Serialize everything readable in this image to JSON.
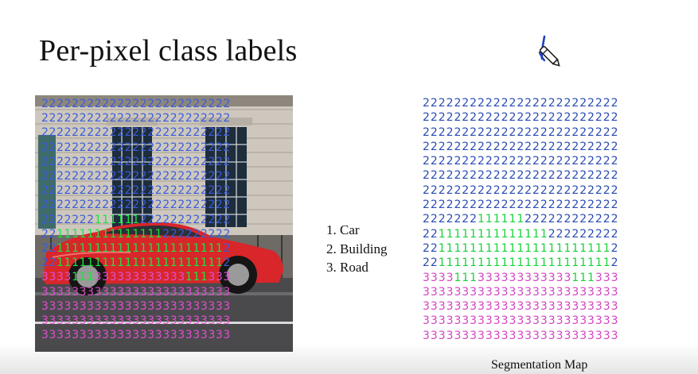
{
  "slide": {
    "title": "Per-pixel class labels"
  },
  "legend": {
    "items": [
      "1. Car",
      "2. Building",
      "3. Road"
    ]
  },
  "segmentation_map": {
    "caption": "Segmentation Map",
    "rows": [
      "2222222222222222222222222",
      "2222222222222222222222222",
      "2222222222222222222222222",
      "2222222222222222222222222",
      "2222222222222222222222222",
      "2222222222222222222222222",
      "2222222222222222222222222",
      "2222222222222222222222222",
      "2222222111111222222222222",
      "2211111111111111222222222",
      "2211111111111111111111112",
      "2211111111111111111111112",
      "3333111333333333333111333",
      "3333333333333333333333333",
      "3333333333333333333333333",
      "3333333333333333333333333",
      "3333333333333333333333333"
    ]
  },
  "photo_overlay": {
    "rows": [
      "2222222222222222222222222",
      "2222222222222222222222222",
      "2222222222222222222222222",
      "2222222222222222222222222",
      "2222222222222222222222222",
      "2222222222222222222222222",
      "2222222222222222222222222",
      "2222222222222222222222222",
      "2222222111111222222222222",
      "2211111111111111222222222",
      "2211111111111111111111112",
      "2211111111111111111111112",
      "3333111333333333333111333",
      "3333333333333333333333333",
      "3333333333333333333333333",
      "3333333333333333333333333",
      "3333333333333333333333333"
    ]
  },
  "colors": {
    "car": "#18d23a",
    "building": "#2a4bb2",
    "road": "#d243c0",
    "car_body": "#d8262a"
  },
  "icons": {
    "annotation": "pen-icon"
  }
}
